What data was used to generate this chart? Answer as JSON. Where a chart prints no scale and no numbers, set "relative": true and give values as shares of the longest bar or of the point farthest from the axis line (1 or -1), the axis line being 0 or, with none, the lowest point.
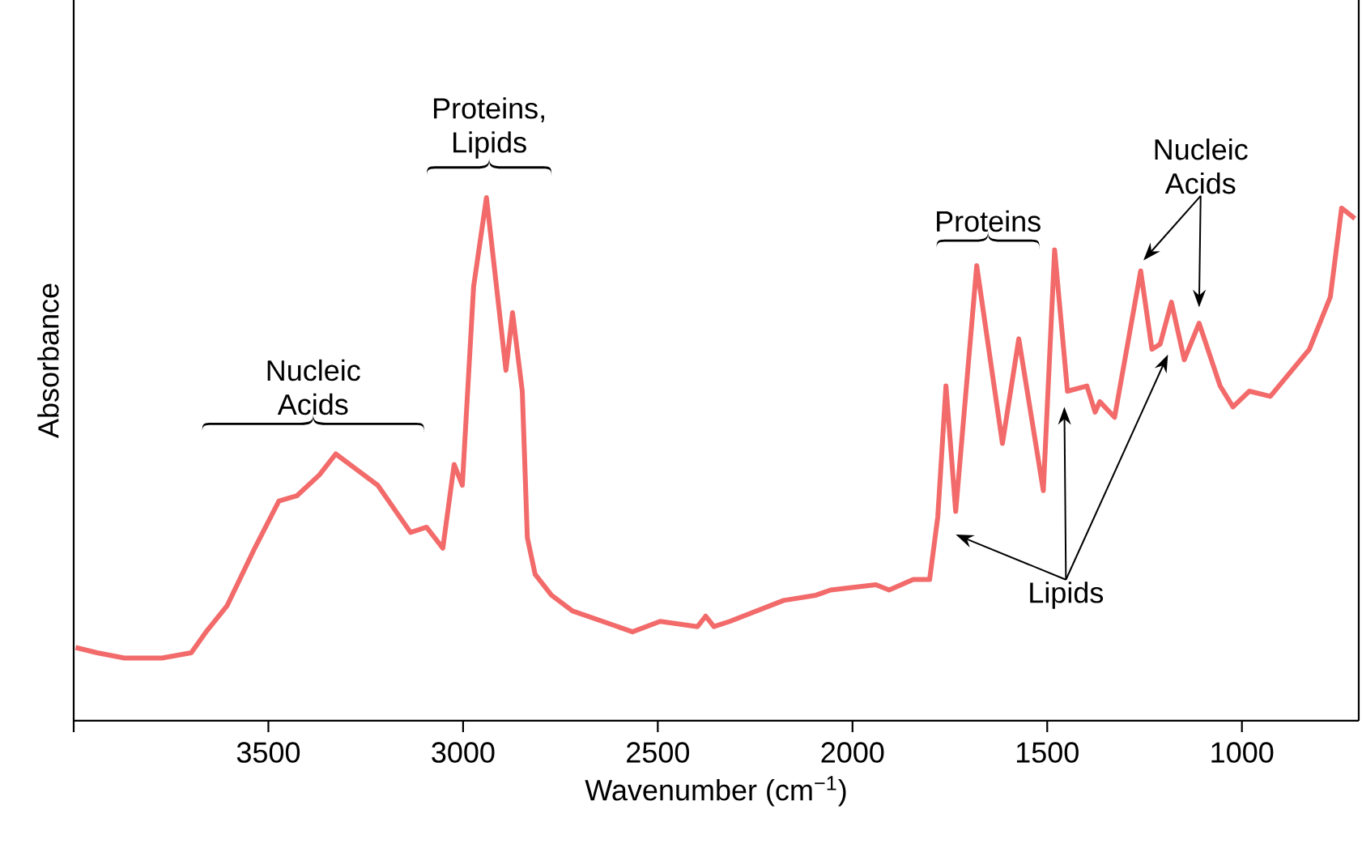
{
  "chart_data": {
    "type": "line",
    "xlabel": "Wavenumber (cm$^{−1}$)",
    "ylabel": "Absorbance",
    "relative": true,
    "color": "#f26a6a",
    "xlim": [
      4000,
      700
    ],
    "xticks": [
      {
        "value": 4000,
        "label": null
      },
      3500,
      3000,
      2500,
      2000,
      1500,
      1000
    ],
    "x": [
      3995,
      3940,
      3870,
      3773,
      3698,
      3660,
      3606,
      3535,
      3473,
      3427,
      3369,
      3327,
      3273,
      3219,
      3135,
      3094,
      3052,
      3023,
      3002,
      2973,
      2940,
      2890,
      2873,
      2848,
      2835,
      2815,
      2773,
      2719,
      2565,
      2494,
      2398,
      2377,
      2356,
      2315,
      2177,
      2094,
      2056,
      1940,
      1906,
      1844,
      1802,
      1781,
      1760,
      1735,
      1681,
      1615,
      1573,
      1510,
      1481,
      1448,
      1398,
      1377,
      1365,
      1327,
      1260,
      1231,
      1210,
      1181,
      1148,
      1110,
      1056,
      1023,
      981,
      927,
      827,
      773,
      744,
      710
    ],
    "values": [
      0.14,
      0.13,
      0.12,
      0.12,
      0.13,
      0.17,
      0.22,
      0.33,
      0.42,
      0.43,
      0.47,
      0.51,
      0.48,
      0.45,
      0.36,
      0.37,
      0.33,
      0.49,
      0.45,
      0.83,
      1,
      0.67,
      0.78,
      0.63,
      0.35,
      0.28,
      0.24,
      0.21,
      0.17,
      0.19,
      0.18,
      0.2,
      0.18,
      0.19,
      0.23,
      0.24,
      0.25,
      0.26,
      0.25,
      0.27,
      0.27,
      0.39,
      0.64,
      0.4,
      0.87,
      0.53,
      0.73,
      0.44,
      0.9,
      0.63,
      0.64,
      0.59,
      0.61,
      0.58,
      0.86,
      0.71,
      0.72,
      0.8,
      0.69,
      0.76,
      0.64,
      0.6,
      0.63,
      0.62,
      0.71,
      0.81,
      0.98,
      0.96
    ],
    "annotations": [
      "Nucleic Acids",
      "Proteins, Lipids",
      "Proteins",
      "Nucleic Acids",
      "Lipids"
    ]
  }
}
